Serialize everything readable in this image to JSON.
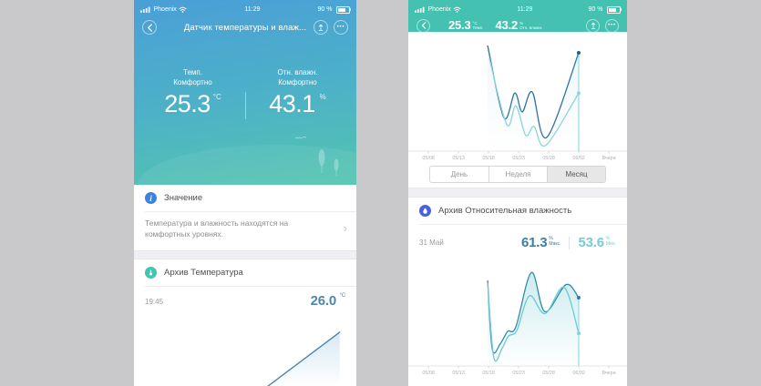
{
  "theme": {
    "background": "#c9c8ca",
    "left_header_blue": "#4a9fd7",
    "left_hero_teal": "#53c5ae",
    "right_header_teal": "#45c1b1",
    "value_blue": "#4d86ae",
    "max_blue": "#3c7ea6",
    "min_teal": "#79ccd3"
  },
  "icons": {
    "back": "chevron-left",
    "share": "share-up-arrow",
    "more": "ellipsis",
    "info": "info-circle",
    "temp_archive": "thermometer-circle",
    "humidity_archive": "water-drop-circle",
    "detail": "chevron-right",
    "signal": "cellular-bars",
    "wifi": "wifi",
    "battery": "battery"
  },
  "left_screen": {
    "status_bar": {
      "carrier": "Phoenix",
      "time": "11:29",
      "battery_percent": "90 %"
    },
    "nav": {
      "title": "Датчик температуры и влаж..."
    },
    "hero": {
      "temperature": {
        "label": "Темп.",
        "status": "Комфортно",
        "value": "25.3",
        "unit": "°C"
      },
      "humidity": {
        "label": "Отн. влажн.",
        "status": "Комфортно",
        "value": "43.1",
        "unit": "%"
      }
    },
    "value_section": {
      "title": "Значение",
      "description": "Температура и влажность находятся на комфортных уровнях."
    },
    "temp_archive_section": {
      "title": "Архив Температура",
      "time_label": "19:45",
      "value": "26.0",
      "unit": "°C"
    }
  },
  "right_screen": {
    "status_bar": {
      "carrier": "Phoenix",
      "time": "11:29",
      "battery_percent": "90 %"
    },
    "nav": {
      "temperature": {
        "value": "25.3",
        "unit": "°C",
        "label": "Темп."
      },
      "humidity": {
        "value": "43.2",
        "unit": "%",
        "label": "Отн. влажн."
      }
    },
    "tabs": [
      {
        "label": "День",
        "selected": false
      },
      {
        "label": "Неделя",
        "selected": false
      },
      {
        "label": "Месяц",
        "selected": true
      }
    ],
    "humidity_archive_section": {
      "title": "Архив Относительная влажность",
      "date": "31 Май",
      "max": {
        "value": "61.3",
        "unit": "%",
        "label": "Макс."
      },
      "min": {
        "value": "53.6",
        "unit": "%",
        "label": "Мин."
      }
    }
  },
  "chart_data": [
    {
      "id": "temp-archive-preview",
      "type": "area",
      "title": "Архив Температура",
      "annotation": {
        "time": "19:45",
        "value": 26.0,
        "unit": "°C"
      },
      "x_labels": null,
      "series": [
        {
          "name": "temperature",
          "color": "#4d86ae",
          "stroke_width": 1.4,
          "fill": true,
          "fill_color": "#a9cde6",
          "fill_opacity": 0.45,
          "points": [
            [
              59.8,
              0
            ],
            [
              92.5,
              79
            ]
          ]
        }
      ]
    },
    {
      "id": "temperature-month",
      "type": "line",
      "period": "Месяц",
      "x_labels": [
        "05/08",
        "05/13",
        "05/18",
        "05/23",
        "05/28",
        "06/02",
        "Вчера"
      ],
      "tick_start_pct": 9.2,
      "tick_end_pct": 91.7,
      "y_scale": "relative-0-100",
      "cursor": {
        "x_pct": 77.9,
        "line_color": "#7fd5d8"
      },
      "series": [
        {
          "name": "max",
          "color": "#2e72a2",
          "end_dot": "#1d5e8e",
          "fill": true,
          "fill_color": "#9fc9e0",
          "fill_opacity": 0.15,
          "points": [
            [
              36.3,
              95.5
            ],
            [
              43.7,
              30.4
            ],
            [
              48.7,
              52.7
            ],
            [
              52.1,
              35.7
            ],
            [
              56.7,
              53.6
            ],
            [
              63.3,
              12.5
            ],
            [
              77.9,
              89.3
            ]
          ]
        },
        {
          "name": "min",
          "color": "#8ad5da",
          "end_dot": "#8fd8db",
          "points": [
            [
              37.1,
              83.9
            ],
            [
              45,
              24.1
            ],
            [
              49.2,
              41.1
            ],
            [
              53.7,
              14.3
            ],
            [
              57.5,
              22.3
            ],
            [
              62.9,
              5.4
            ],
            [
              77.9,
              52.7
            ]
          ]
        }
      ]
    },
    {
      "id": "humidity-month",
      "type": "area",
      "period": "Месяц",
      "unit": "%",
      "selected_point": {
        "date": "31 Май",
        "max": 61.3,
        "min": 53.6
      },
      "x_labels": [
        "05/08",
        "05/13",
        "05/18",
        "05/23",
        "05/28",
        "06/02",
        "Вчера"
      ],
      "tick_start_pct": 9.2,
      "tick_end_pct": 91.7,
      "y_scale": "relative-0-100",
      "cursor": {
        "x_pct": 77.9,
        "line_color": "#7fd5d8"
      },
      "series": [
        {
          "name": "max",
          "color": "#2e8cab",
          "end_dot": "#2c7ea0",
          "fill": true,
          "fill_color": "#8ed4da",
          "fill_opacity": 0.45,
          "points": [
            [
              36.3,
              82.7
            ],
            [
              38.4,
              16.4
            ],
            [
              42.1,
              21.8
            ],
            [
              45.4,
              33.6
            ],
            [
              49.2,
              38.2
            ],
            [
              56.3,
              90.9
            ],
            [
              62.5,
              52.7
            ],
            [
              72.1,
              79.1
            ],
            [
              77.9,
              66.4
            ]
          ]
        },
        {
          "name": "min",
          "color": "#6fc9d1",
          "end_dot": "#83d2d6",
          "points": [
            [
              36.3,
              80
            ],
            [
              39.1,
              8.2
            ],
            [
              42.9,
              17.3
            ],
            [
              45.8,
              29.1
            ],
            [
              49.6,
              34.5
            ],
            [
              55.4,
              68.2
            ],
            [
              62.5,
              50.9
            ],
            [
              71.2,
              76.4
            ],
            [
              77.9,
              31.8
            ]
          ]
        }
      ]
    }
  ]
}
